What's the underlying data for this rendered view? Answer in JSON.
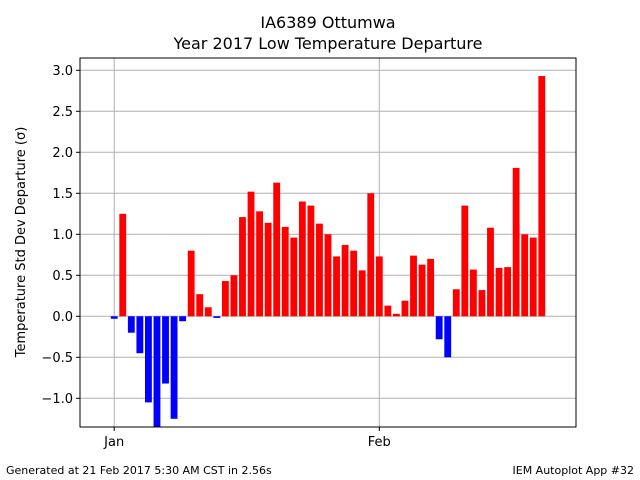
{
  "chart_data": {
    "type": "bar",
    "title": [
      "IA6389 Ottumwa",
      "Year 2017 Low Temperature Departure"
    ],
    "xlabel": "",
    "ylabel": "Temperature Std Dev Departure (σ)",
    "ylim": [
      -1.35,
      3.15
    ],
    "yticks": [
      "−1.0",
      "−0.5",
      "0.0",
      "0.5",
      "1.0",
      "1.5",
      "2.0",
      "2.5",
      "3.0"
    ],
    "ytick_values": [
      -1.0,
      -0.5,
      0.0,
      0.5,
      1.0,
      1.5,
      2.0,
      2.5,
      3.0
    ],
    "xticks": [
      "Jan",
      "Feb"
    ],
    "xtick_dates": [
      "2017-01-01",
      "2017-02-01"
    ],
    "xlim": [
      "2016-12-28",
      "2017-02-24"
    ],
    "grid": true,
    "colors": {
      "positive": "#ff0000",
      "negative": "#0000ff",
      "grid": "#b0b0b0"
    },
    "x": [
      "2017-01-01",
      "2017-01-02",
      "2017-01-03",
      "2017-01-04",
      "2017-01-05",
      "2017-01-06",
      "2017-01-07",
      "2017-01-08",
      "2017-01-09",
      "2017-01-10",
      "2017-01-11",
      "2017-01-12",
      "2017-01-13",
      "2017-01-14",
      "2017-01-15",
      "2017-01-16",
      "2017-01-17",
      "2017-01-18",
      "2017-01-19",
      "2017-01-20",
      "2017-01-21",
      "2017-01-22",
      "2017-01-23",
      "2017-01-24",
      "2017-01-25",
      "2017-01-26",
      "2017-01-27",
      "2017-01-28",
      "2017-01-29",
      "2017-01-30",
      "2017-01-31",
      "2017-02-01",
      "2017-02-02",
      "2017-02-03",
      "2017-02-04",
      "2017-02-05",
      "2017-02-06",
      "2017-02-07",
      "2017-02-08",
      "2017-02-09",
      "2017-02-10",
      "2017-02-11",
      "2017-02-12",
      "2017-02-13",
      "2017-02-14",
      "2017-02-15",
      "2017-02-16",
      "2017-02-17",
      "2017-02-18",
      "2017-02-19",
      "2017-02-20"
    ],
    "values": [
      -0.03,
      1.25,
      -0.2,
      -0.45,
      -1.05,
      -1.35,
      -0.82,
      -1.25,
      -0.06,
      0.8,
      0.27,
      0.11,
      -0.02,
      0.43,
      0.5,
      1.21,
      1.52,
      1.28,
      1.14,
      1.63,
      1.09,
      0.96,
      1.4,
      1.35,
      1.13,
      1.0,
      0.73,
      0.87,
      0.8,
      0.56,
      1.5,
      0.73,
      0.13,
      0.03,
      0.19,
      0.74,
      0.63,
      0.7,
      -0.28,
      -0.5,
      0.33,
      1.35,
      0.57,
      0.32,
      1.08,
      0.59,
      0.6,
      1.81,
      1.0,
      0.96,
      2.93
    ]
  },
  "footer": {
    "left": "Generated at 21 Feb 2017 5:30 AM CST in 2.56s",
    "right": "IEM Autoplot App #32"
  }
}
